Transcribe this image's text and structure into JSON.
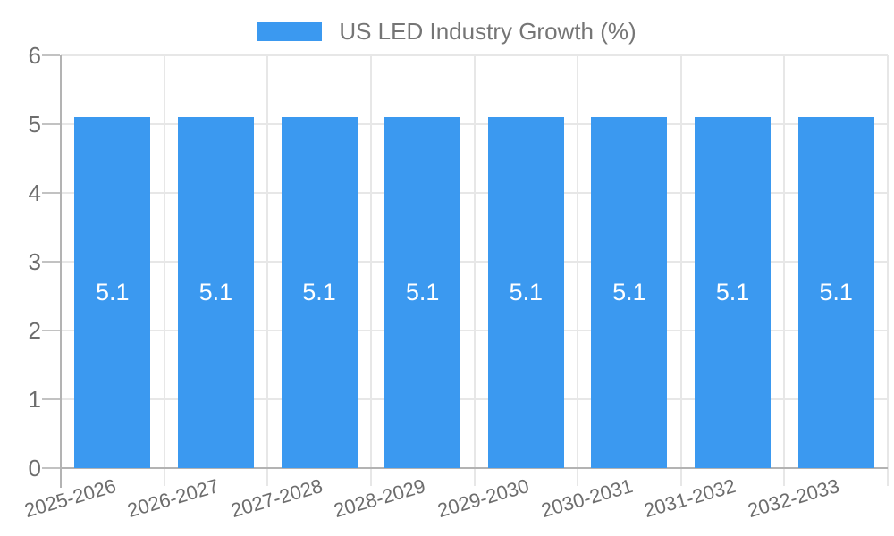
{
  "chart_data": {
    "type": "bar",
    "title": "",
    "categories": [
      "2025-2026",
      "2026-2027",
      "2027-2028",
      "2028-2029",
      "2029-2030",
      "2030-2031",
      "2031-2032",
      "2032-2033"
    ],
    "series": [
      {
        "name": "US LED Industry Growth (%)",
        "values": [
          5.1,
          5.1,
          5.1,
          5.1,
          5.1,
          5.1,
          5.1,
          5.1
        ],
        "bar_value_labels": [
          "5.1",
          "5.1",
          "5.1",
          "5.1",
          "5.1",
          "5.1",
          "5.1",
          "5.1"
        ],
        "color": "#3b99f0"
      }
    ],
    "xlabel": "",
    "ylabel": "",
    "ylim": [
      0,
      6
    ],
    "yticks": [
      0,
      1,
      2,
      3,
      4,
      5,
      6
    ],
    "grid": true,
    "legend_position": "top-center",
    "colors": {
      "bar": "#3b99f0",
      "gridline": "#e7e7e7",
      "axis_line": "#b3b3b3",
      "axis_text": "#6d6d6d",
      "legend_text": "#757575",
      "bar_label_text": "#ffffff",
      "background": "#ffffff"
    }
  }
}
